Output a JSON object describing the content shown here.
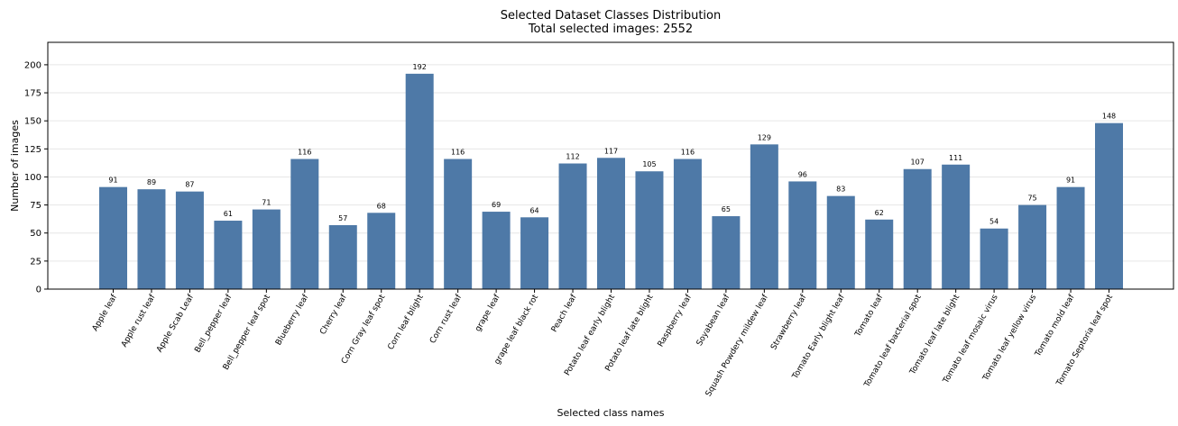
{
  "chart_data": {
    "type": "bar",
    "title": "Selected Dataset Classes Distribution",
    "subtitle": "Total selected images: 2552",
    "xlabel": "Selected class names",
    "ylabel": "Number of images",
    "ylim": [
      0,
      220
    ],
    "yticks": [
      0,
      25,
      50,
      75,
      100,
      125,
      150,
      175,
      200
    ],
    "grid": "horizontal",
    "bar_color": "#4e79a7",
    "categories": [
      "Apple leaf",
      "Apple rust leaf",
      "Apple Scab Leaf",
      "Bell_pepper leaf",
      "Bell_pepper leaf spot",
      "Blueberry leaf",
      "Cherry leaf",
      "Corn Gray leaf spot",
      "Corn leaf blight",
      "Corn rust leaf",
      "grape leaf",
      "grape leaf black rot",
      "Peach leaf",
      "Potato leaf early blight",
      "Potato leaf late blight",
      "Raspberry leaf",
      "Soyabean leaf",
      "Squash Powdery mildew leaf",
      "Strawberry leaf",
      "Tomato Early blight leaf",
      "Tomato leaf",
      "Tomato leaf bacterial spot",
      "Tomato leaf late blight",
      "Tomato leaf mosaic virus",
      "Tomato leaf yellow virus",
      "Tomato mold leaf",
      "Tomato Septoria leaf spot"
    ],
    "values": [
      91,
      89,
      87,
      61,
      71,
      116,
      57,
      68,
      192,
      116,
      69,
      64,
      112,
      117,
      105,
      116,
      65,
      129,
      96,
      83,
      62,
      107,
      111,
      54,
      75,
      91,
      148
    ]
  }
}
